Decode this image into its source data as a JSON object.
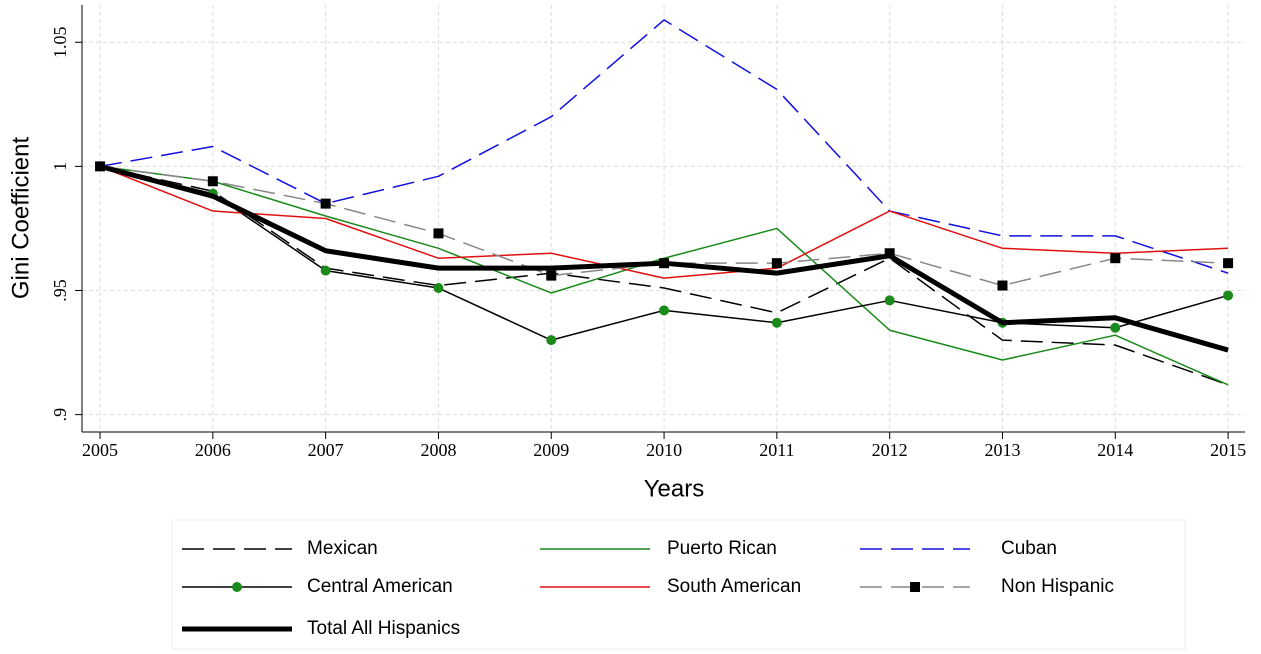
{
  "chart_data": {
    "type": "line",
    "x_label": "Years",
    "y_label": "Gini Coefficient",
    "x": [
      2005,
      2006,
      2007,
      2008,
      2009,
      2010,
      2011,
      2012,
      2013,
      2014,
      2015
    ],
    "xlim": [
      2004.84,
      2015.15
    ],
    "xticks": [
      2005,
      2006,
      2007,
      2008,
      2009,
      2010,
      2011,
      2012,
      2013,
      2014,
      2015
    ],
    "ylim": [
      0.893,
      1.065
    ],
    "yticks": [
      {
        "value": 0.9,
        "label": ".9"
      },
      {
        "value": 0.95,
        "label": ".95"
      },
      1,
      1.05
    ],
    "grid": true,
    "legend": "bottom",
    "series": [
      {
        "name": "Mexican",
        "color": "#000000",
        "dash": "long",
        "width": 1.5,
        "marker": "none",
        "values": [
          1.0,
          0.99,
          0.959,
          0.952,
          0.957,
          0.951,
          0.941,
          0.963,
          0.93,
          0.928,
          0.912
        ]
      },
      {
        "name": "Puerto Rican",
        "color": "#1a8a1a",
        "dash": "solid",
        "width": 1.5,
        "marker": "none",
        "values": [
          1.0,
          0.994,
          0.98,
          0.967,
          0.949,
          0.963,
          0.975,
          0.934,
          0.922,
          0.932,
          0.912
        ]
      },
      {
        "name": "Cuban",
        "color": "#1010e0",
        "dash": "long",
        "width": 1.5,
        "marker": "none",
        "values": [
          1.0,
          1.008,
          0.985,
          0.996,
          1.02,
          1.059,
          1.031,
          0.982,
          0.972,
          0.972,
          0.957
        ]
      },
      {
        "name": "Central American",
        "color": "#000000",
        "dash": "solid",
        "width": 1.5,
        "marker": "circle",
        "marker_color": "#1a8a1a",
        "values": [
          1.0,
          0.989,
          0.958,
          0.951,
          0.93,
          0.942,
          0.937,
          0.946,
          0.937,
          0.935,
          0.948
        ]
      },
      {
        "name": "South American",
        "color": "#e01010",
        "dash": "solid",
        "width": 1.5,
        "marker": "none",
        "values": [
          1.0,
          0.982,
          0.979,
          0.963,
          0.965,
          0.955,
          0.959,
          0.982,
          0.967,
          0.965,
          0.967
        ]
      },
      {
        "name": "Non Hispanic",
        "color": "#888888",
        "dash": "long",
        "width": 1.5,
        "marker": "square",
        "marker_color": "#000000",
        "values": [
          1.0,
          0.994,
          0.985,
          0.973,
          0.956,
          0.961,
          0.961,
          0.965,
          0.952,
          0.963,
          0.961
        ]
      },
      {
        "name": "Total All Hispanics",
        "color": "#000000",
        "dash": "solid",
        "width": 5,
        "marker": "none",
        "values": [
          1.0,
          0.988,
          0.966,
          0.959,
          0.959,
          0.961,
          0.957,
          0.964,
          0.937,
          0.939,
          0.926
        ]
      }
    ]
  }
}
